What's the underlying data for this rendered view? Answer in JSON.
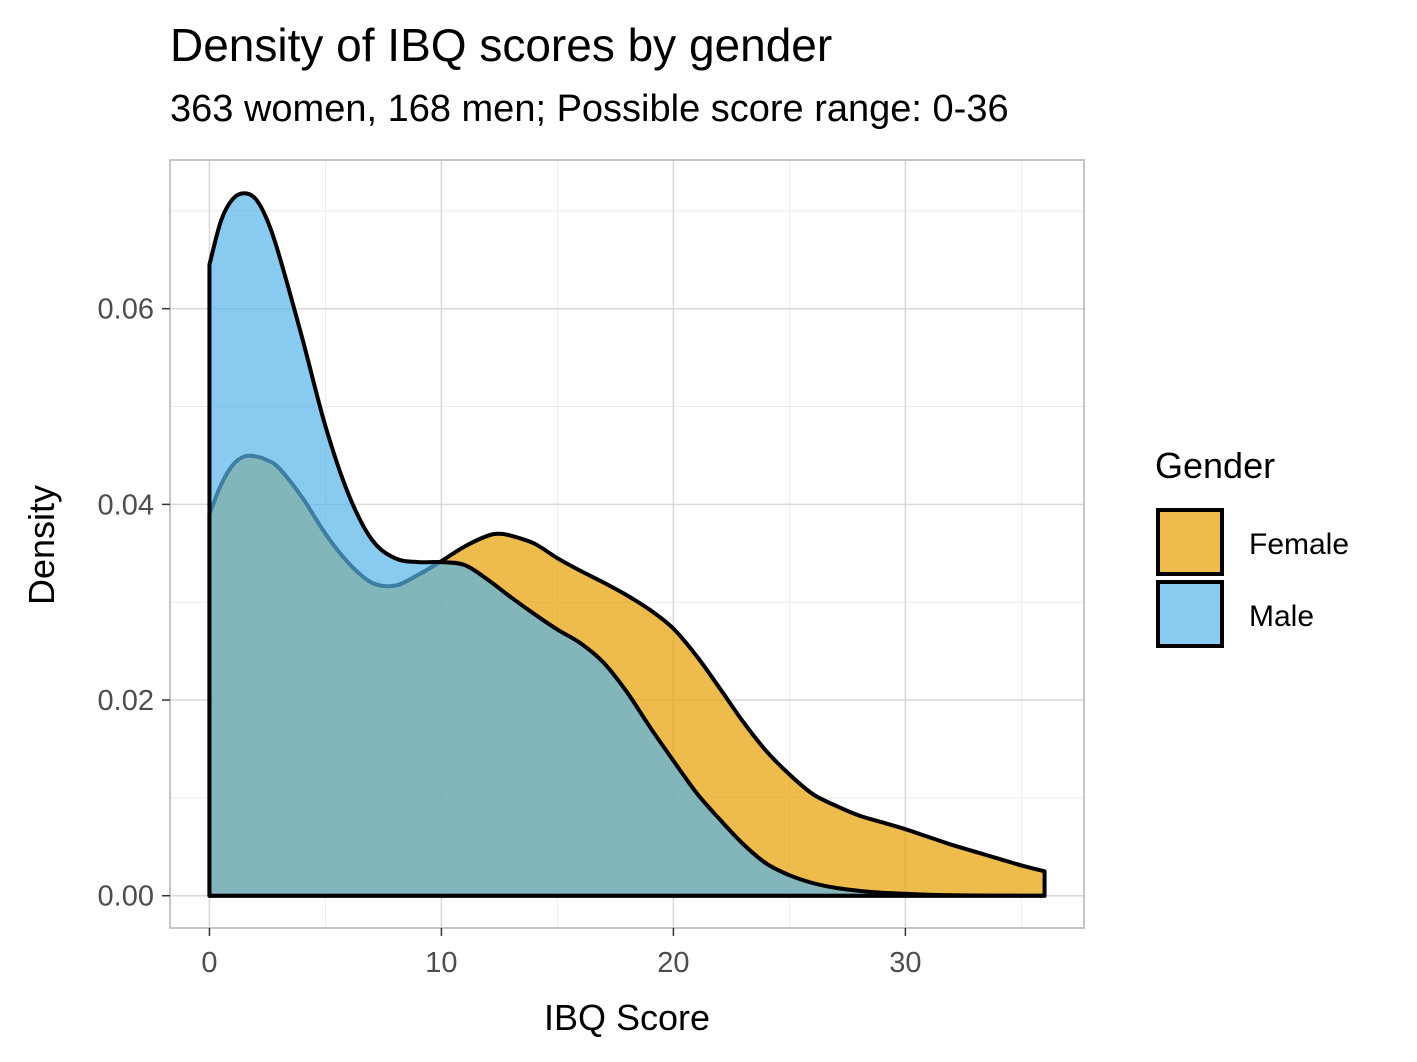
{
  "chart_data": {
    "type": "area",
    "title": "Density of IBQ scores by gender",
    "subtitle": "363 women, 168 men; Possible score range: 0-36",
    "xlabel": "IBQ Score",
    "ylabel": "Density",
    "xlim": [
      -1.7,
      37.7
    ],
    "ylim": [
      -0.0033,
      0.0752
    ],
    "x_ticks": [
      0,
      10,
      20,
      30
    ],
    "x_tick_labels": [
      "0",
      "10",
      "20",
      "30"
    ],
    "y_ticks": [
      0.0,
      0.02,
      0.04,
      0.06
    ],
    "y_tick_labels": [
      "0.00",
      "0.02",
      "0.04",
      "0.06"
    ],
    "grid": true,
    "legend": {
      "title": "Gender",
      "position": "right"
    },
    "series": [
      {
        "name": "Female",
        "color": "#E69F00",
        "opacity": 0.7,
        "x": [
          0,
          0.5,
          1,
          1.5,
          2,
          2.5,
          3,
          4,
          5,
          6,
          7,
          8,
          9,
          10,
          11,
          12,
          12.5,
          13,
          14,
          15,
          16,
          17,
          18,
          19,
          20,
          21,
          22,
          23,
          24,
          25,
          26,
          27,
          28,
          29,
          30,
          31,
          32,
          33,
          34,
          35,
          36
        ],
        "y": [
          0.039,
          0.042,
          0.044,
          0.0449,
          0.0449,
          0.0445,
          0.0437,
          0.0407,
          0.037,
          0.034,
          0.032,
          0.0317,
          0.0328,
          0.0342,
          0.0357,
          0.0368,
          0.037,
          0.0368,
          0.036,
          0.0345,
          0.0332,
          0.032,
          0.0307,
          0.0292,
          0.0273,
          0.0245,
          0.0212,
          0.0178,
          0.0148,
          0.0124,
          0.0104,
          0.0092,
          0.0082,
          0.0075,
          0.0068,
          0.006,
          0.0052,
          0.0045,
          0.0038,
          0.0031,
          0.0025
        ]
      },
      {
        "name": "Male",
        "color": "#56B4E9",
        "opacity": 0.7,
        "x": [
          0,
          0.5,
          1,
          1.5,
          2,
          2.5,
          3,
          4,
          5,
          6,
          7,
          8,
          9,
          10,
          11,
          12,
          13,
          14,
          15,
          16,
          17,
          18,
          19,
          20,
          21,
          22,
          23,
          24,
          25,
          26,
          27,
          28,
          29,
          30,
          31,
          32,
          33,
          34,
          35,
          36
        ],
        "y": [
          0.0645,
          0.069,
          0.0712,
          0.0718,
          0.0712,
          0.069,
          0.0655,
          0.057,
          0.048,
          0.041,
          0.0364,
          0.0345,
          0.0341,
          0.0341,
          0.0338,
          0.0323,
          0.0305,
          0.0288,
          0.0272,
          0.0258,
          0.0238,
          0.0208,
          0.0172,
          0.0138,
          0.0105,
          0.0078,
          0.0053,
          0.0033,
          0.0021,
          0.0013,
          0.0008,
          0.0005,
          0.0003,
          0.0002,
          0.0001,
          5e-05,
          2e-05,
          1e-05,
          0.0,
          0.0
        ]
      }
    ]
  }
}
